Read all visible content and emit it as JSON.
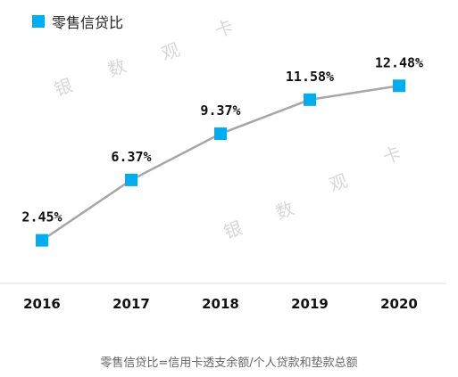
{
  "legend": {
    "label": "零售信贷比",
    "color": "#00AEEF"
  },
  "footnote": "零售信贷比=信用卡透支余额/个人贷款和垫款总额",
  "watermark": [
    "银",
    "数",
    "观",
    "卡"
  ],
  "colors": {
    "line": "#A6A6A6",
    "marker": "#00AEEF",
    "baseline": "#DDDDDD"
  },
  "chart_data": {
    "type": "line",
    "categories": [
      "2016",
      "2017",
      "2018",
      "2019",
      "2020"
    ],
    "series": [
      {
        "name": "零售信贷比",
        "values": [
          2.45,
          6.37,
          9.37,
          11.58,
          12.48
        ],
        "labels": [
          "2.45%",
          "6.37%",
          "9.37%",
          "11.58%",
          "12.48%"
        ]
      }
    ],
    "title": "",
    "xlabel": "",
    "ylabel": "",
    "ylim": [
      0,
      14
    ],
    "grid": false,
    "legend_position": "top-left"
  }
}
